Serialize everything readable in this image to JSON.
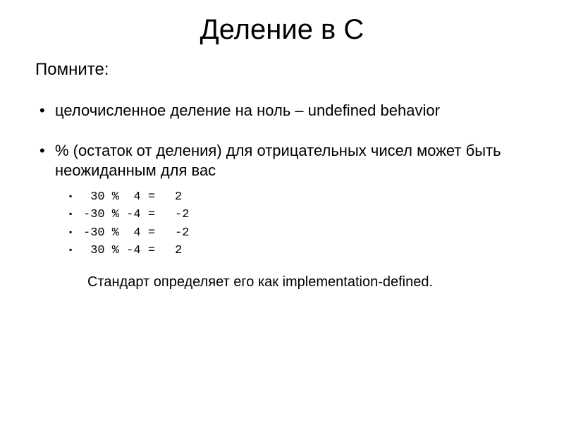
{
  "title": "Деление в С",
  "subtitle": "Помните:",
  "bullets": {
    "b1": "целочисленное деление на ноль – undefined behavior",
    "b2": "% (остаток от деления) для отрицательных чисел может быть неожиданным для вас"
  },
  "examples": [
    {
      "expr": " 30 %  4 =",
      "result": "2"
    },
    {
      "expr": "-30 % -4 =",
      "result": "-2"
    },
    {
      "expr": "-30 %  4 =",
      "result": "-2"
    },
    {
      "expr": " 30 % -4 =",
      "result": "2"
    }
  ],
  "footnote": "Стандарт определяет его как implementation-defined.",
  "colors": {
    "background": "#ffffff",
    "text": "#000000"
  },
  "fonts": {
    "body": "Arial",
    "mono": "Courier New"
  }
}
